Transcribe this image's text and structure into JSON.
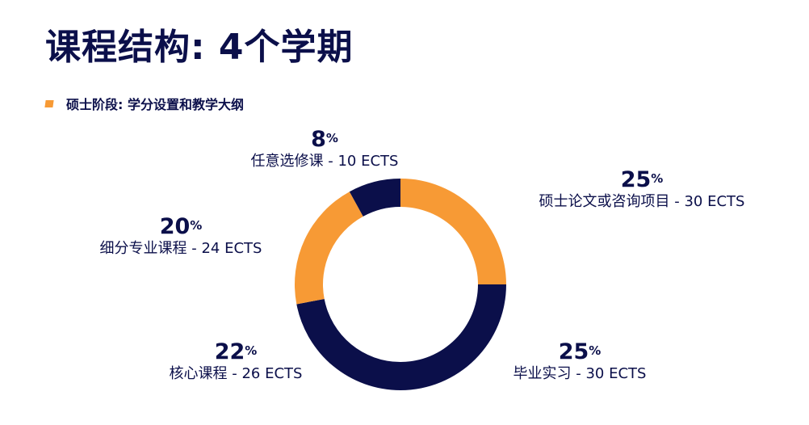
{
  "title": "课程结构: 4个学期",
  "subtitle": "硕士阶段: 学分设置和教学大纲",
  "colors": {
    "orange": "#f79a35",
    "navy": "#0b0f4a"
  },
  "chart_data": {
    "type": "pie",
    "variant": "donut",
    "slices": [
      {
        "label": "硕士论文或咨询项目 - 30 ECTS",
        "value": 25,
        "percent_label": "25",
        "color": "#f79a35"
      },
      {
        "label": "毕业实习 - 30 ECTS",
        "value": 25,
        "percent_label": "25",
        "color": "#0b0f4a"
      },
      {
        "label": "核心课程 - 26 ECTS",
        "value": 22,
        "percent_label": "22",
        "color": "#0b0f4a"
      },
      {
        "label": "细分专业课程 - 24 ECTS",
        "value": 20,
        "percent_label": "20",
        "color": "#f79a35"
      },
      {
        "label": "任意选修课 - 10 ECTS",
        "value": 8,
        "percent_label": "8",
        "color": "#0b0f4a"
      }
    ],
    "percent_symbol": "%"
  }
}
